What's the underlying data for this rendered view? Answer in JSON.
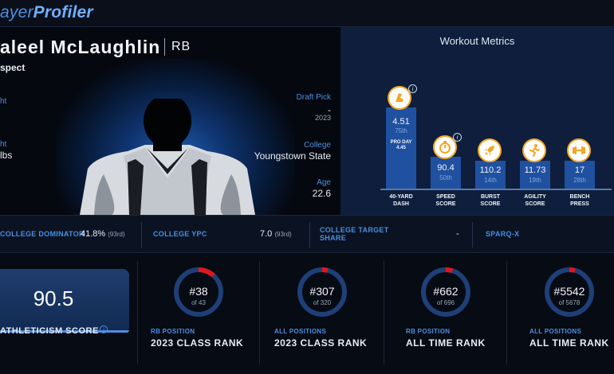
{
  "header": {
    "logo_part1": "ayer",
    "logo_part2": "Profiler"
  },
  "player": {
    "name": "aleel McLaughlin",
    "position": "RB",
    "status": "spect",
    "left_labels": [
      "ht",
      "ht"
    ],
    "left_value": "lbs",
    "draft_pick": {
      "label": "Draft Pick",
      "value": "-",
      "year": "2023"
    },
    "college": {
      "label": "College",
      "value": "Youngstown State"
    },
    "age": {
      "label": "Age",
      "value": "22.6"
    }
  },
  "workout": {
    "title": "Workout Metrics",
    "metrics": [
      {
        "name": "40-YARD DASH",
        "line1": "40-YARD",
        "line2": "DASH",
        "value": "4.51",
        "rank": "75th",
        "percentile": 75,
        "pro_day_label": "PRO DAY",
        "pro_day_value": "4.45",
        "icon": "sprint-shoe-icon",
        "info": "i"
      },
      {
        "name": "SPEED SCORE",
        "line1": "SPEED",
        "line2": "SCORE",
        "value": "90.4",
        "rank": "50th",
        "percentile": 50,
        "icon": "stopwatch-icon",
        "info": "i"
      },
      {
        "name": "BURST SCORE",
        "line1": "BURST",
        "line2": "SCORE",
        "value": "110.2",
        "rank": "14th",
        "percentile": 14,
        "icon": "rocket-icon"
      },
      {
        "name": "AGILITY SCORE",
        "line1": "AGILITY",
        "line2": "SCORE",
        "value": "11.73",
        "rank": "19th",
        "percentile": 19,
        "icon": "runner-icon"
      },
      {
        "name": "BENCH PRESS",
        "line1": "BENCH",
        "line2": "PRESS",
        "value": "17",
        "rank": "28th",
        "percentile": 28,
        "icon": "dumbbell-icon"
      }
    ]
  },
  "stats": {
    "college_dominator": {
      "label": "COLLEGE DOMINATOR",
      "value": "41.8%",
      "rank": "(93rd)"
    },
    "college_ypc": {
      "label": "COLLEGE YPC",
      "value": "7.0",
      "rank": "(93rd)"
    },
    "college_target_share": {
      "label1": "COLLEGE TARGET",
      "label2": "SHARE",
      "value": "-"
    },
    "sparq": {
      "label": "SPARQ-X"
    }
  },
  "athleticism": {
    "value": "90.5",
    "label": "ATHLETICISM SCORE",
    "info": "i"
  },
  "ranks": [
    {
      "num": "#38",
      "of": "of 43",
      "rank": 38,
      "total": 43,
      "category": "RB POSITION",
      "title": "2023 CLASS RANK"
    },
    {
      "num": "#307",
      "of": "of 320",
      "rank": 307,
      "total": 320,
      "category": "ALL POSITIONS",
      "title": "2023 CLASS RANK"
    },
    {
      "num": "#662",
      "of": "of 696",
      "rank": 662,
      "total": 696,
      "category": "RB POSITION",
      "title": "ALL TIME RANK"
    },
    {
      "num": "#5542",
      "of": "of 5678",
      "rank": 5542,
      "total": 5678,
      "category": "ALL POSITIONS",
      "title": "ALL TIME RANK"
    }
  ],
  "colors": {
    "accent_blue": "#4b8fe0",
    "bar_blue": "#2050a0",
    "icon_orange": "#f5a623",
    "rank_red": "#e0161e"
  }
}
